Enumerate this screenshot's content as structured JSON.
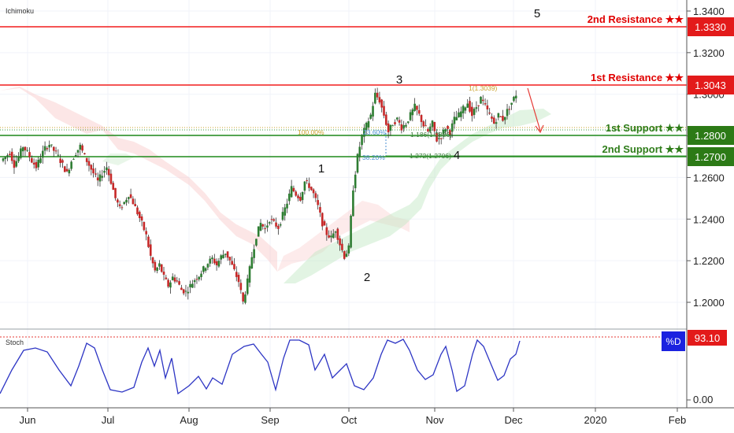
{
  "indicator_label": "Ichimoku",
  "stoch_label": "Stoch",
  "chart_data": {
    "type": "candlestick",
    "y_ticks": [
      "1.3400",
      "1.3200",
      "1.3000",
      "1.2800",
      "1.2600",
      "1.2400",
      "1.2200",
      "1.2000"
    ],
    "stoch_ticks": [
      "0.00"
    ],
    "x_ticks": [
      "Jun",
      "Jul",
      "Aug",
      "Sep",
      "Oct",
      "Nov",
      "Dec",
      "2020",
      "Feb"
    ],
    "levels": [
      {
        "name": "2nd Resistance ★★",
        "value": "1.3330",
        "color": "#f21d1d",
        "text_color": "#e00000"
      },
      {
        "name": "1st Resistance ★★",
        "value": "1.3043",
        "color": "#f21d1d",
        "text_color": "#e00000"
      },
      {
        "name": "1st Support ★★",
        "value": "1.2800",
        "color": "#1f8a1a",
        "text_color": "#2f7d1a"
      },
      {
        "name": "2nd Support ★★",
        "value": "1.2700",
        "color": "#1f8a1a",
        "text_color": "#2f7d1a"
      }
    ],
    "wave_labels": [
      "1",
      "2",
      "3",
      "4",
      "5"
    ],
    "fib_labels": [
      "100.00%",
      "23.60%",
      "38.20%",
      "1(1.3039)",
      "1.272(1.2706)",
      "1.186(1.2826)"
    ],
    "stoch_badge": "%D",
    "stoch_value": "93.10",
    "ohlc_path": [
      1.268,
      1.27,
      1.272,
      1.266,
      1.27,
      1.275,
      1.272,
      1.268,
      1.265,
      1.27,
      1.274,
      1.276,
      1.273,
      1.27,
      1.266,
      1.262,
      1.268,
      1.272,
      1.275,
      1.27,
      1.266,
      1.262,
      1.258,
      1.262,
      1.265,
      1.258,
      1.25,
      1.245,
      1.248,
      1.252,
      1.248,
      1.243,
      1.238,
      1.232,
      1.222,
      1.215,
      1.218,
      1.212,
      1.208,
      1.212,
      1.21,
      1.206,
      1.205,
      1.208,
      1.211,
      1.213,
      1.216,
      1.219,
      1.221,
      1.218,
      1.222,
      1.224,
      1.22,
      1.215,
      1.21,
      1.2,
      1.21,
      1.222,
      1.232,
      1.238,
      1.235,
      1.24,
      1.238,
      1.236,
      1.242,
      1.248,
      1.255,
      1.252,
      1.25,
      1.258,
      1.256,
      1.252,
      1.246,
      1.238,
      1.233,
      1.231,
      1.235,
      1.228,
      1.222,
      1.226,
      1.255,
      1.27,
      1.28,
      1.285,
      1.29,
      1.3,
      1.297,
      1.29,
      1.282,
      1.286,
      1.288,
      1.284,
      1.286,
      1.29,
      1.294,
      1.29,
      1.285,
      1.282,
      1.286,
      1.278,
      1.28,
      1.284,
      1.282,
      1.288,
      1.29,
      1.293,
      1.296,
      1.29,
      1.294,
      1.298,
      1.294,
      1.29,
      1.286,
      1.29,
      1.288,
      1.292,
      1.296,
      1.3
    ]
  }
}
